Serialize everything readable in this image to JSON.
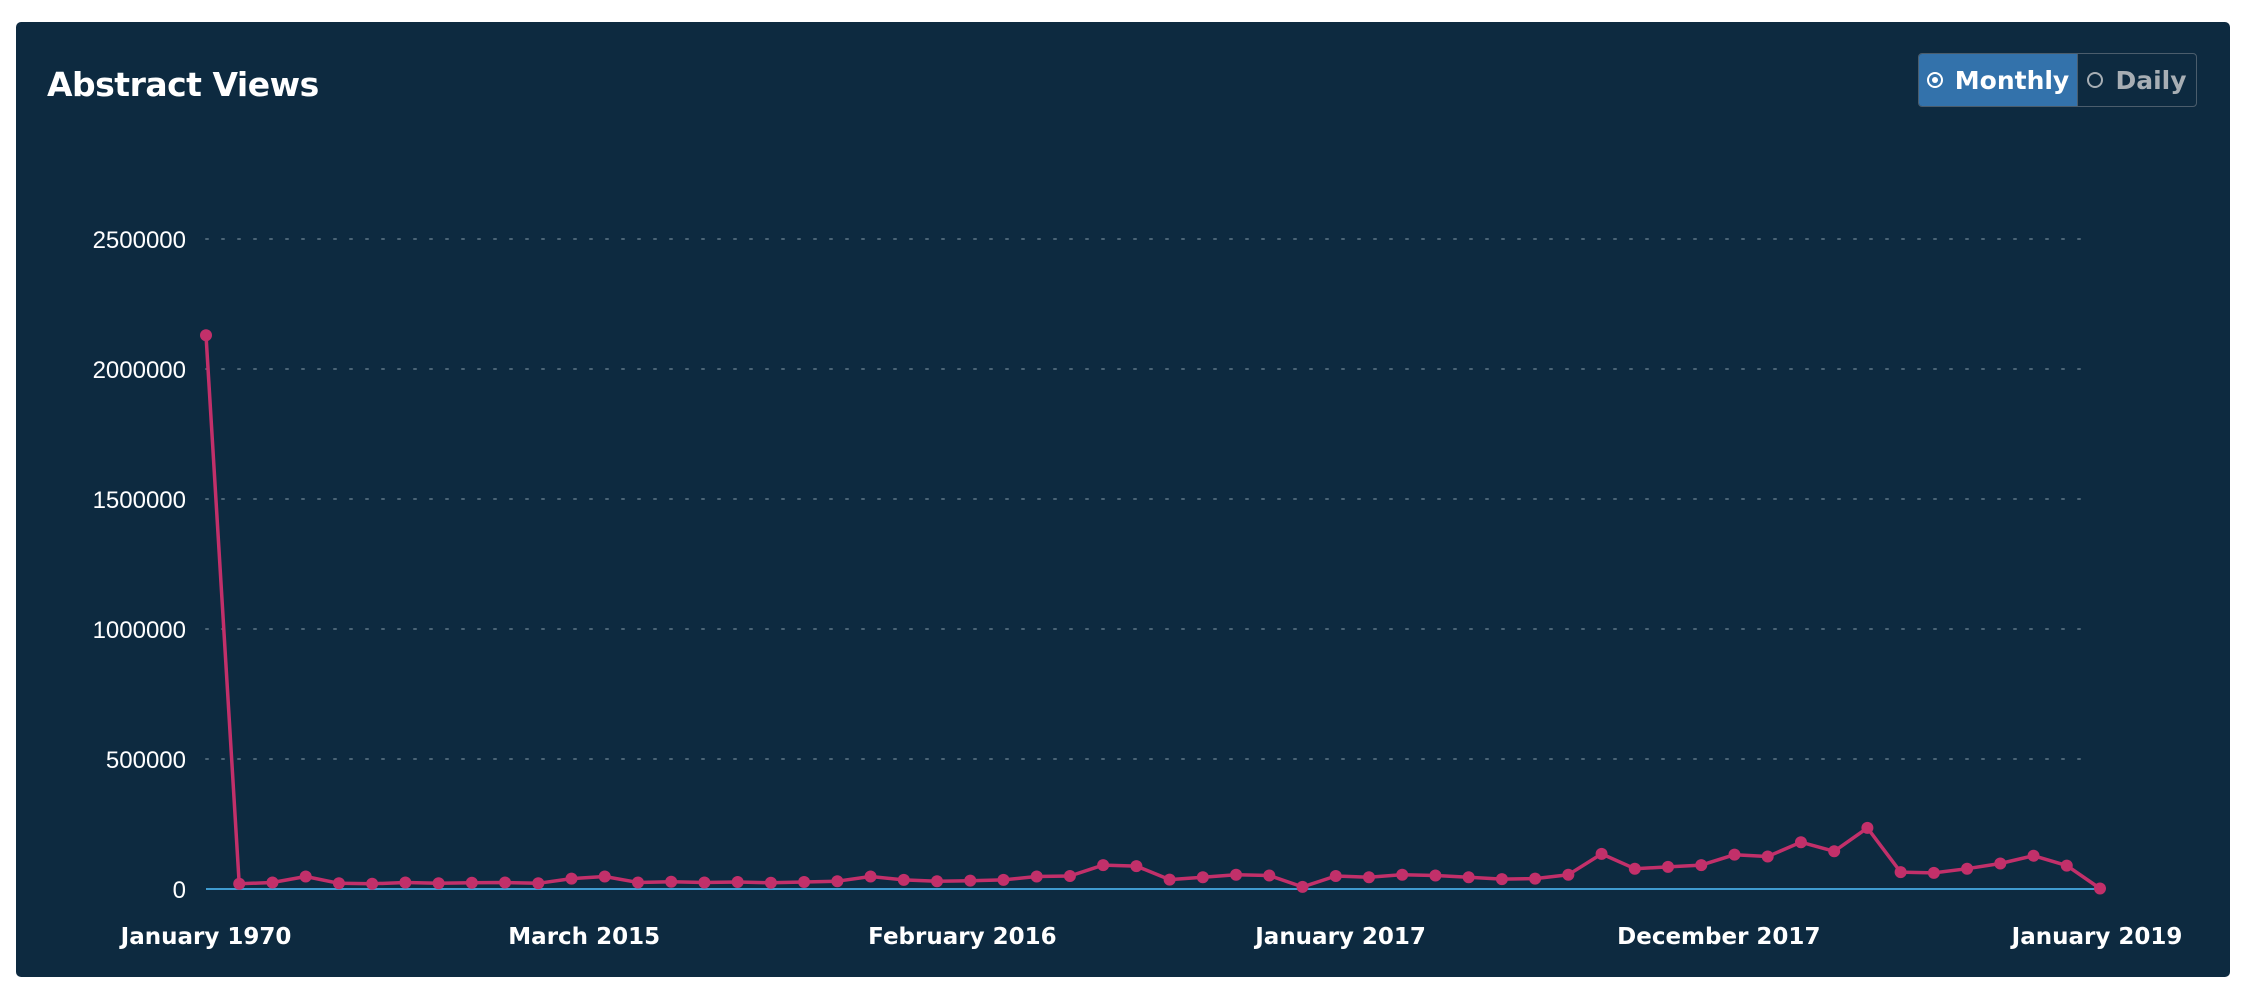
{
  "panel": {
    "title": "Abstract Views"
  },
  "toggle": {
    "monthly_label": "Monthly",
    "daily_label": "Daily",
    "selected": "Monthly"
  },
  "colors": {
    "background": "#0d2a40",
    "line": "#c2306a",
    "axis": "#3f9bd0",
    "grid": "#4b6475",
    "toggle_active": "#3372ab"
  },
  "chart_data": {
    "type": "line",
    "title": "Abstract Views",
    "xlabel": "",
    "ylabel": "",
    "ylim": [
      0,
      2500000
    ],
    "yticks": [
      "0",
      "500000",
      "1000000",
      "1500000",
      "2000000",
      "2500000"
    ],
    "xtick_labels": [
      "January 1970",
      "March 2015",
      "February 2016",
      "January 2017",
      "December 2017",
      "January 2019"
    ],
    "grid": "horizontal dotted",
    "series": [
      {
        "values": [
          2130000,
          20000,
          25000,
          48000,
          22000,
          20000,
          25000,
          22000,
          24000,
          25000,
          22000,
          40000,
          48000,
          25000,
          28000,
          25000,
          27000,
          24000,
          27000,
          30000,
          48000,
          35000,
          30000,
          32000,
          35000,
          48000,
          50000,
          92000,
          88000,
          36000,
          45000,
          55000,
          52000,
          8000,
          50000,
          45000,
          55000,
          52000,
          45000,
          38000,
          40000,
          55000,
          135000,
          78000,
          85000,
          92000,
          132000,
          125000,
          180000,
          145000,
          235000,
          65000,
          62000,
          78000,
          98000,
          128000,
          90000,
          2000
        ]
      }
    ]
  }
}
